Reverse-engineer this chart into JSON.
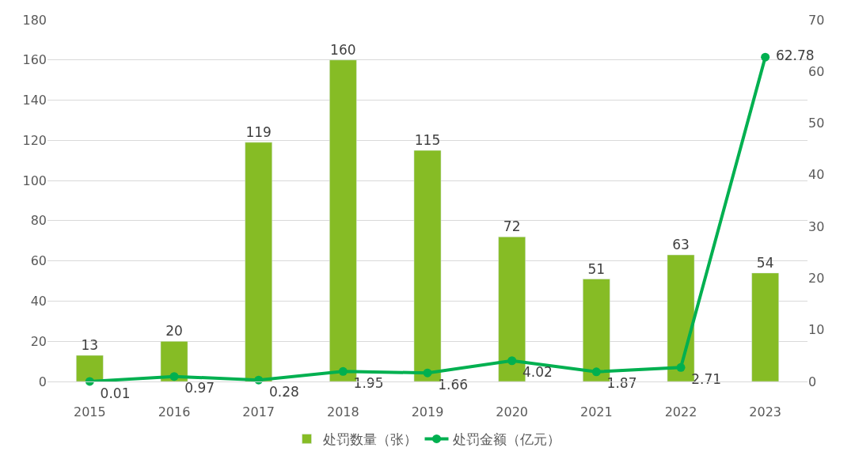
{
  "chart_data": {
    "type": "bar",
    "categories": [
      "2015",
      "2016",
      "2017",
      "2018",
      "2019",
      "2020",
      "2021",
      "2022",
      "2023"
    ],
    "series": [
      {
        "name": "处罚数量（张）",
        "color": "#86bc25",
        "values": [
          13,
          20,
          119,
          160,
          115,
          72,
          51,
          63,
          54
        ]
      },
      {
        "name": "处罚金额（亿元）",
        "type": "line",
        "axis": "y2",
        "color": "#00b050",
        "marker": "circle",
        "values": [
          0.01,
          0.97,
          0.28,
          1.95,
          1.66,
          4.02,
          1.87,
          2.71,
          62.78
        ]
      }
    ],
    "ylim": [
      0,
      180
    ],
    "yticks": [
      0,
      20,
      40,
      60,
      80,
      100,
      120,
      140,
      160,
      180
    ],
    "y2lim": [
      0,
      70
    ],
    "y2ticks": [
      0,
      10,
      20,
      30,
      40,
      50,
      60,
      70
    ],
    "data_labels": true,
    "grid": "y",
    "legend": "bottom"
  }
}
